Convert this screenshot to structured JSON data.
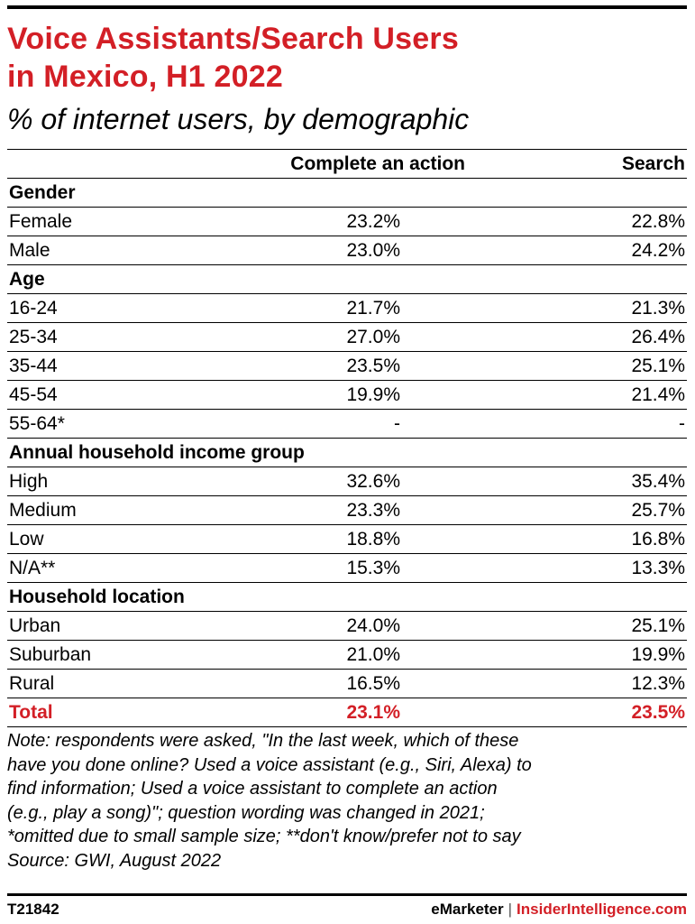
{
  "header": {
    "title_line1": "Voice Assistants/Search Users",
    "title_line2": "in Mexico, H1 2022",
    "subtitle": "% of internet users, by demographic"
  },
  "chart_data": {
    "type": "table",
    "columns": [
      "Complete an action",
      "Search"
    ],
    "groups": [
      {
        "name": "Gender",
        "rows": [
          {
            "label": "Female",
            "values": [
              "23.2%",
              "22.8%"
            ]
          },
          {
            "label": "Male",
            "values": [
              "23.0%",
              "24.2%"
            ]
          }
        ]
      },
      {
        "name": "Age",
        "rows": [
          {
            "label": "16-24",
            "values": [
              "21.7%",
              "21.3%"
            ]
          },
          {
            "label": "25-34",
            "values": [
              "27.0%",
              "26.4%"
            ]
          },
          {
            "label": "35-44",
            "values": [
              "23.5%",
              "25.1%"
            ]
          },
          {
            "label": "45-54",
            "values": [
              "19.9%",
              "21.4%"
            ]
          },
          {
            "label": "55-64*",
            "values": [
              "-",
              "-"
            ]
          }
        ]
      },
      {
        "name": "Annual household income group",
        "rows": [
          {
            "label": "High",
            "values": [
              "32.6%",
              "35.4%"
            ]
          },
          {
            "label": "Medium",
            "values": [
              "23.3%",
              "25.7%"
            ]
          },
          {
            "label": "Low",
            "values": [
              "18.8%",
              "16.8%"
            ]
          },
          {
            "label": "N/A**",
            "values": [
              "15.3%",
              "13.3%"
            ]
          }
        ]
      },
      {
        "name": "Household location",
        "rows": [
          {
            "label": "Urban",
            "values": [
              "24.0%",
              "25.1%"
            ]
          },
          {
            "label": "Suburban",
            "values": [
              "21.0%",
              "19.9%"
            ]
          },
          {
            "label": "Rural",
            "values": [
              "16.5%",
              "12.3%"
            ]
          }
        ]
      }
    ],
    "total": {
      "label": "Total",
      "values": [
        "23.1%",
        "23.5%"
      ]
    }
  },
  "note": {
    "lines": [
      "Note: respondents were asked, \"In the last week, which of these",
      "have you done online? Used a voice assistant (e.g., Siri, Alexa) to",
      "find information; Used a voice assistant to complete an action",
      "(e.g., play a song)\"; question wording was changed in 2021;",
      "*omitted due to small sample size; **don't know/prefer not to say",
      "Source: GWI, August 2022"
    ]
  },
  "footer": {
    "chart_id": "T21842",
    "brand": "eMarketer",
    "separator": "|",
    "brand2": "InsiderIntelligence.com"
  },
  "colors": {
    "accent": "#d31f26",
    "text": "#000000"
  }
}
